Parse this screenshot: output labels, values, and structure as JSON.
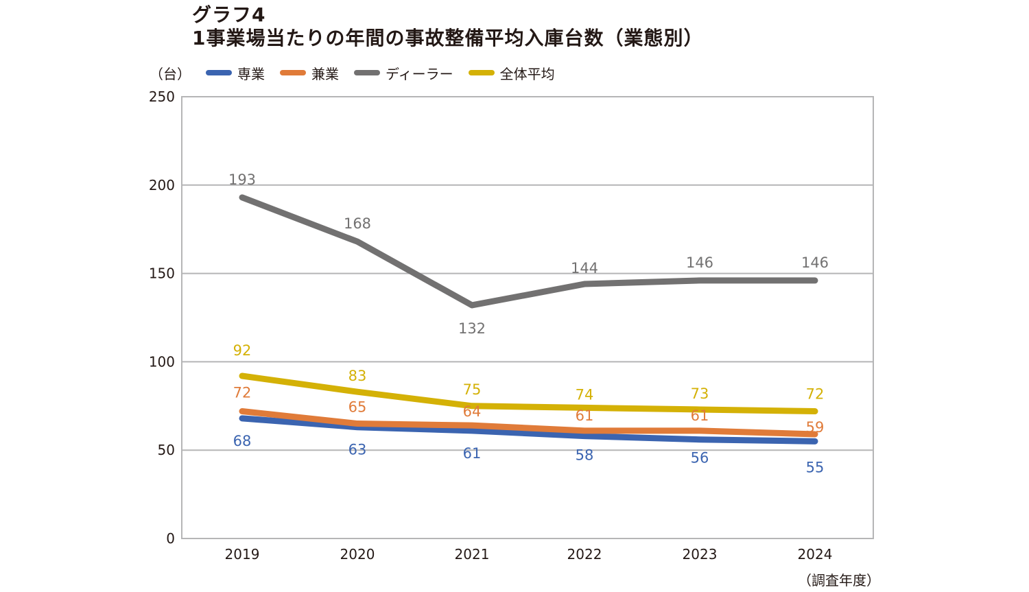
{
  "chart_data": {
    "type": "line",
    "title": "グラフ4",
    "subtitle": "1事業場当たりの年間の事故整備平均入庫台数（業態別）",
    "ylabel": "（台）",
    "xlabel": "（調査年度）",
    "x": [
      "2019",
      "2020",
      "2021",
      "2022",
      "2023",
      "2024"
    ],
    "ylim": [
      0,
      250
    ],
    "yticks": [
      0,
      50,
      100,
      150,
      200,
      250
    ],
    "grid": true,
    "legend": "top",
    "series": [
      {
        "name": "専業",
        "color": "#3b64b0",
        "values": [
          68,
          63,
          61,
          58,
          56,
          55
        ]
      },
      {
        "name": "兼業",
        "color": "#e07b39",
        "values": [
          72,
          65,
          64,
          61,
          61,
          59
        ]
      },
      {
        "name": "ディーラー",
        "color": "#727171",
        "values": [
          193,
          168,
          132,
          144,
          146,
          146
        ]
      },
      {
        "name": "全体平均",
        "color": "#d4b106",
        "values": [
          92,
          83,
          75,
          74,
          73,
          72
        ]
      }
    ]
  }
}
